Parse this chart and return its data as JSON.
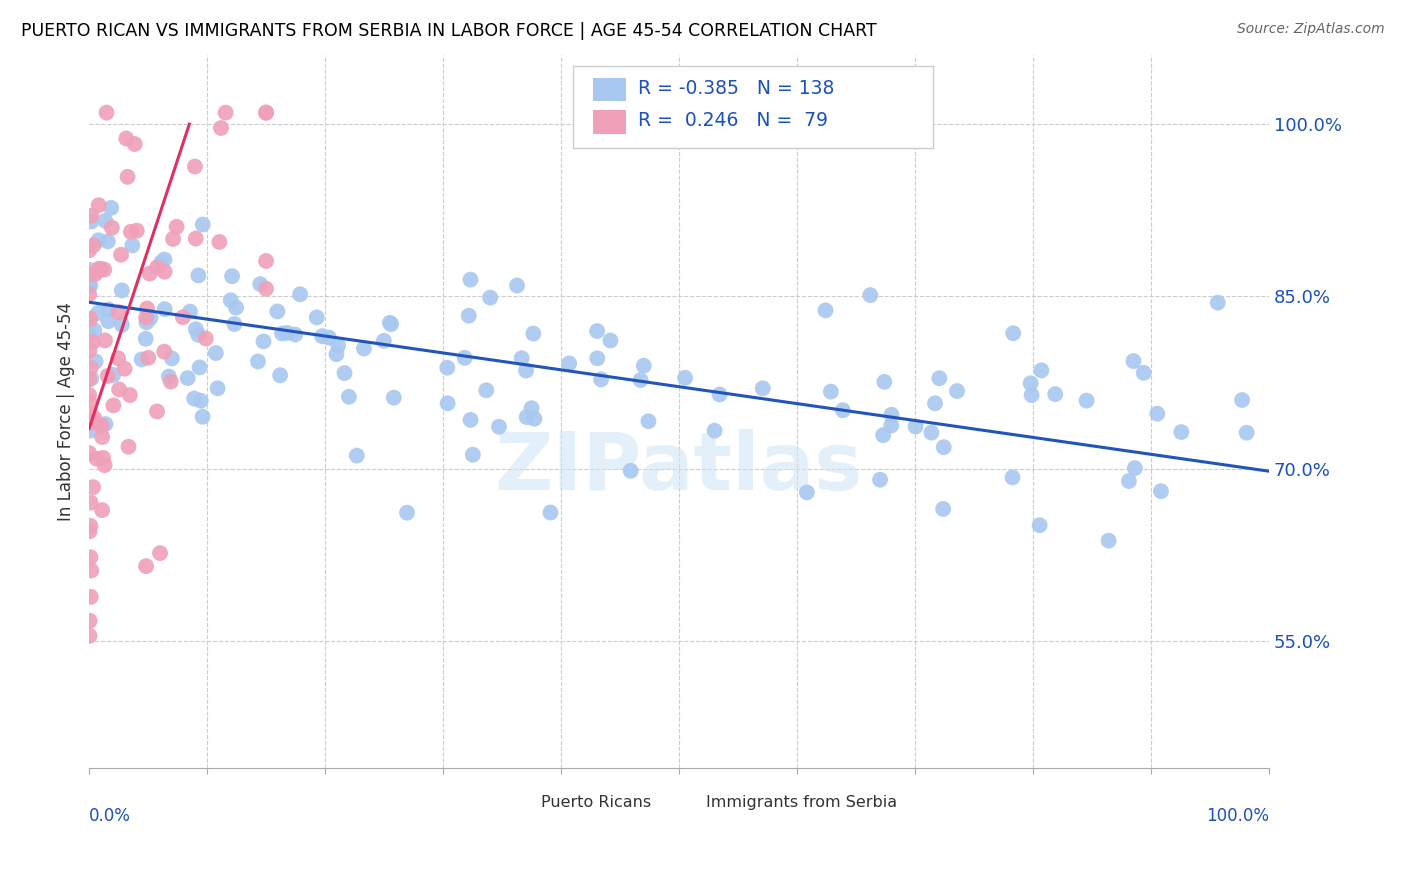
{
  "title": "PUERTO RICAN VS IMMIGRANTS FROM SERBIA IN LABOR FORCE | AGE 45-54 CORRELATION CHART",
  "source": "Source: ZipAtlas.com",
  "ylabel": "In Labor Force | Age 45-54",
  "legend_blue_r": "-0.385",
  "legend_blue_n": "138",
  "legend_pink_r": "0.246",
  "legend_pink_n": "79",
  "blue_color": "#a8c8f0",
  "pink_color": "#f0a0b8",
  "blue_line_color": "#2255bb",
  "pink_line_color": "#e03060",
  "watermark": "ZIPatlas",
  "xlim": [
    0.0,
    1.0
  ],
  "ylim": [
    0.44,
    1.06
  ],
  "blue_trend_x": [
    0.0,
    1.0
  ],
  "blue_trend_y": [
    0.845,
    0.698
  ],
  "pink_trend_x": [
    0.0,
    0.085
  ],
  "pink_trend_y": [
    0.735,
    1.0
  ]
}
